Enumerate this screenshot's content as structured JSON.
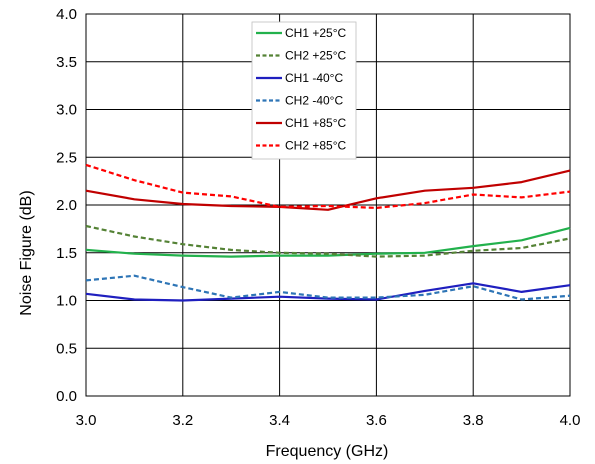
{
  "chart_data": {
    "type": "line",
    "title": "",
    "xlabel": "Frequency (GHz)",
    "ylabel": "Noise Figure (dB)",
    "xlim": [
      3.0,
      4.0
    ],
    "ylim": [
      0.0,
      4.0
    ],
    "x_ticks": [
      "3.0",
      "3.2",
      "3.4",
      "3.6",
      "3.8",
      "4.0"
    ],
    "y_ticks": [
      "0.0",
      "0.5",
      "1.0",
      "1.5",
      "2.0",
      "2.5",
      "3.0",
      "3.5",
      "4.0"
    ],
    "grid": true,
    "legend_position": "top-center",
    "x": [
      3.0,
      3.1,
      3.2,
      3.3,
      3.4,
      3.5,
      3.6,
      3.7,
      3.8,
      3.9,
      4.0
    ],
    "series": [
      {
        "name": "CH1 +25°C",
        "color": "#22b14c",
        "dash": "solid",
        "values": [
          1.53,
          1.49,
          1.47,
          1.46,
          1.47,
          1.47,
          1.49,
          1.5,
          1.57,
          1.63,
          1.76
        ]
      },
      {
        "name": "CH2 +25°C",
        "color": "#548235",
        "dash": "dashed",
        "values": [
          1.78,
          1.67,
          1.59,
          1.53,
          1.5,
          1.49,
          1.46,
          1.47,
          1.52,
          1.55,
          1.65
        ]
      },
      {
        "name": "CH1 -40°C",
        "color": "#1f1fbf",
        "dash": "solid",
        "values": [
          1.07,
          1.01,
          1.0,
          1.02,
          1.04,
          1.02,
          1.01,
          1.1,
          1.18,
          1.09,
          1.16
        ]
      },
      {
        "name": "CH2 -40°C",
        "color": "#2e75b6",
        "dash": "dashed",
        "values": [
          1.21,
          1.26,
          1.14,
          1.03,
          1.09,
          1.03,
          1.03,
          1.06,
          1.15,
          1.01,
          1.05
        ]
      },
      {
        "name": "CH1 +85°C",
        "color": "#c00000",
        "dash": "solid",
        "values": [
          2.15,
          2.06,
          2.01,
          1.99,
          1.98,
          1.95,
          2.07,
          2.15,
          2.18,
          2.24,
          2.36
        ]
      },
      {
        "name": "CH2 +85°C",
        "color": "#ff0000",
        "dash": "dashed",
        "values": [
          2.42,
          2.26,
          2.13,
          2.09,
          1.98,
          1.99,
          1.97,
          2.02,
          2.11,
          2.08,
          2.14
        ]
      }
    ]
  }
}
